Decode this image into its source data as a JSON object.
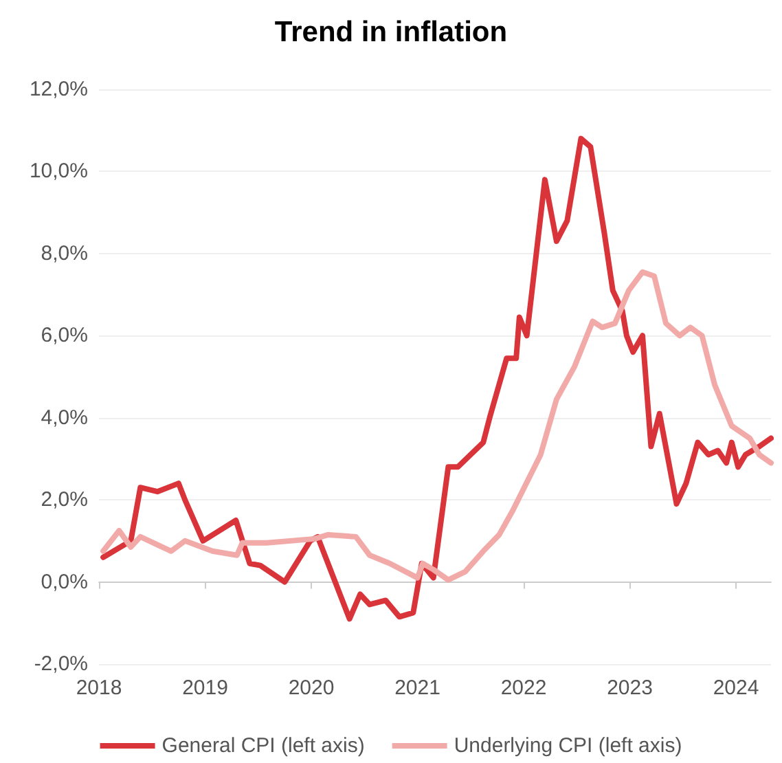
{
  "chart_data": {
    "type": "line",
    "title": "Trend in inflation",
    "xlim": [
      2018,
      2024.33
    ],
    "xticks": [
      2018,
      2019,
      2020,
      2021,
      2022,
      2023,
      2024
    ],
    "ylim": [
      -2,
      12
    ],
    "yticks": [
      {
        "value": -2,
        "label": "-2,0%"
      },
      {
        "value": 0,
        "label": "0,0%"
      },
      {
        "value": 2,
        "label": "2,0%"
      },
      {
        "value": 4,
        "label": "4,0%"
      },
      {
        "value": 6,
        "label": "6,0%"
      },
      {
        "value": 8,
        "label": "8,0%"
      },
      {
        "value": 10,
        "label": "10,0%"
      },
      {
        "value": 12,
        "label": "12,0%"
      }
    ],
    "grid": "y",
    "legend": "bottom",
    "marker": "none",
    "line_style": "solid",
    "series": [
      {
        "name": "General CPI (left axis)",
        "color": "#d9343a",
        "x": [
          2018.04,
          2018.3,
          2018.39,
          2018.55,
          2018.75,
          2018.81,
          2018.98,
          2019.29,
          2019.42,
          2019.52,
          2019.75,
          2019.99,
          2020.06,
          2020.36,
          2020.46,
          2020.55,
          2020.7,
          2020.83,
          2020.96,
          2021.04,
          2021.15,
          2021.29,
          2021.38,
          2021.62,
          2021.68,
          2021.84,
          2021.93,
          2021.96,
          2022.03,
          2022.2,
          2022.31,
          2022.41,
          2022.54,
          2022.63,
          2022.76,
          2022.84,
          2022.93,
          2022.97,
          2023.03,
          2023.12,
          2023.2,
          2023.28,
          2023.44,
          2023.53,
          2023.64,
          2023.74,
          2023.83,
          2023.91,
          2023.96,
          2024.02,
          2024.09,
          2024.22,
          2024.33
        ],
        "values": [
          0.6,
          1.0,
          2.3,
          2.2,
          2.4,
          2.0,
          1.0,
          1.5,
          0.45,
          0.4,
          0,
          1.0,
          1.1,
          -0.9,
          -0.3,
          -0.55,
          -0.45,
          -0.85,
          -0.75,
          0.45,
          0.1,
          2.8,
          2.8,
          3.4,
          4.0,
          5.45,
          5.45,
          6.45,
          6.0,
          9.8,
          8.3,
          8.8,
          10.8,
          10.6,
          8.5,
          7.1,
          6.6,
          6.0,
          5.6,
          6.0,
          3.3,
          4.1,
          1.9,
          2.4,
          3.4,
          3.1,
          3.2,
          2.9,
          3.4,
          2.8,
          3.1,
          3.3,
          3.5
        ]
      },
      {
        "name": "Underlying CPI (left axis)",
        "color": "#f2aaa9",
        "x": [
          2018.04,
          2018.19,
          2018.3,
          2018.39,
          2018.68,
          2018.81,
          2019.07,
          2019.3,
          2019.35,
          2019.58,
          2020.03,
          2020.16,
          2020.42,
          2020.55,
          2020.74,
          2021.0,
          2021.05,
          2021.15,
          2021.29,
          2021.45,
          2021.62,
          2021.77,
          2021.9,
          2022.16,
          2022.31,
          2022.48,
          2022.65,
          2022.74,
          2022.86,
          2022.99,
          2023.12,
          2023.23,
          2023.34,
          2023.47,
          2023.57,
          2023.68,
          2023.8,
          2023.96,
          2024.13,
          2024.22,
          2024.33
        ],
        "values": [
          0.75,
          1.25,
          0.85,
          1.1,
          0.75,
          1.0,
          0.75,
          0.65,
          0.95,
          0.95,
          1.05,
          1.15,
          1.1,
          0.65,
          0.45,
          0.1,
          0.45,
          0.3,
          0.05,
          0.25,
          0.75,
          1.15,
          1.75,
          3.1,
          4.45,
          5.25,
          6.35,
          6.2,
          6.3,
          7.1,
          7.55,
          7.45,
          6.3,
          6.0,
          6.2,
          6.0,
          4.8,
          3.8,
          3.5,
          3.1,
          2.9
        ]
      }
    ]
  }
}
